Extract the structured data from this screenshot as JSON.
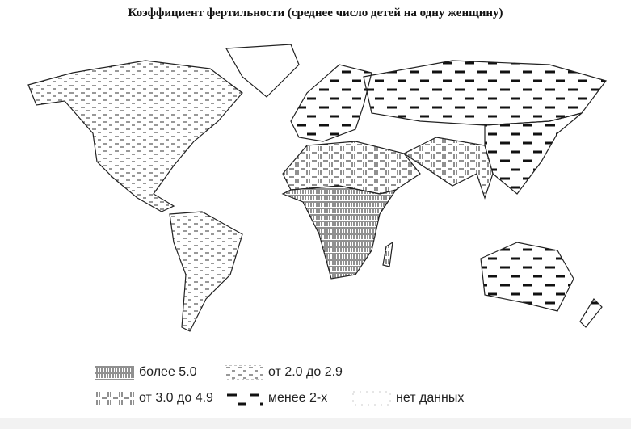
{
  "title": "Коэффициент фертильности (среднее число детей на одну женщину)",
  "legend": [
    {
      "key": "over5",
      "label": "более 5.0",
      "pattern": "dense-mixed-lines"
    },
    {
      "key": "3to49",
      "label": "от 3.0 до 4.9",
      "pattern": "vertical-and-horizontal-lines"
    },
    {
      "key": "2to29",
      "label": "от 2.0 до 2.9",
      "pattern": "short-dashes"
    },
    {
      "key": "under2",
      "label": "менее 2-х",
      "pattern": "thick-dashes"
    },
    {
      "key": "nodata",
      "label": "нет данных",
      "pattern": "blank"
    }
  ],
  "regions": [
    {
      "name": "North America",
      "category": "2to29"
    },
    {
      "name": "Greenland",
      "category": "nodata"
    },
    {
      "name": "South America",
      "category": "2to29"
    },
    {
      "name": "Europe",
      "category": "under2"
    },
    {
      "name": "Africa",
      "category": "over5"
    },
    {
      "name": "North Africa & Middle East",
      "category": "3to49"
    },
    {
      "name": "Russia & North Asia",
      "category": "under2"
    },
    {
      "name": "South Asia",
      "category": "3to49"
    },
    {
      "name": "East Asia",
      "category": "under2"
    },
    {
      "name": "Australia",
      "category": "under2"
    }
  ],
  "colors": {
    "ink": "#222222",
    "background": "#ffffff"
  }
}
